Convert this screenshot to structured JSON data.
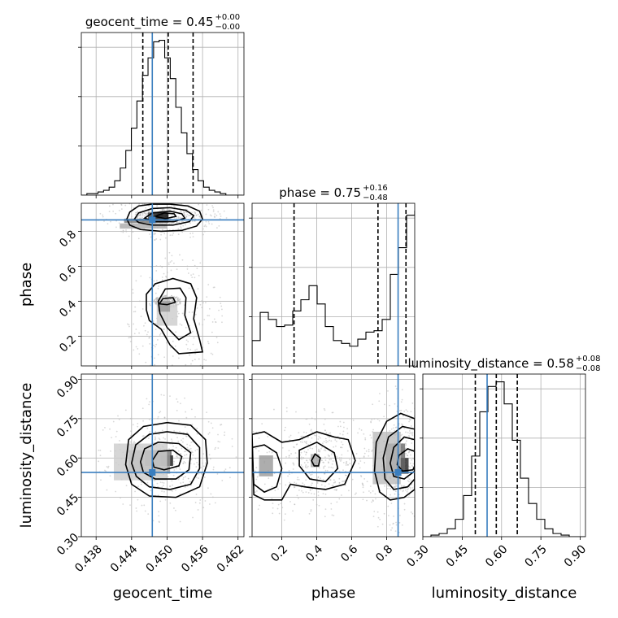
{
  "truth_color": "#3a7ebf",
  "chart_data": {
    "type": "corner",
    "parameters": [
      "geocent_time",
      "phase",
      "luminosity_distance"
    ],
    "truths": {
      "geocent_time": 0.4475,
      "phase": 0.865,
      "luminosity_distance": 0.545
    },
    "axes": {
      "geocent_time": {
        "range": [
          0.4355,
          0.463
        ],
        "ticks": [
          0.438,
          0.444,
          0.45,
          0.456,
          0.462
        ],
        "tick_labels": [
          "0.438",
          "0.444",
          "0.450",
          "0.456",
          "0.462"
        ]
      },
      "phase": {
        "range": [
          0.03,
          0.96
        ],
        "ticks": [
          0.2,
          0.4,
          0.6,
          0.8
        ],
        "tick_labels": [
          "0.2",
          "0.4",
          "0.6",
          "0.8"
        ]
      },
      "luminosity_distance": {
        "range": [
          0.3,
          0.92
        ],
        "ticks": [
          0.3,
          0.45,
          0.6,
          0.75,
          0.9
        ],
        "tick_labels": [
          "0.30",
          "0.45",
          "0.60",
          "0.75",
          "0.90"
        ]
      }
    },
    "titles": [
      {
        "param": "geocent_time",
        "label": "geocent_time = 0.45",
        "sup": "+0.00",
        "sub": "−0.00"
      },
      {
        "param": "phase",
        "label": "phase = 0.75",
        "sup": "+0.16",
        "sub": "−0.48"
      },
      {
        "param": "luminosity_distance",
        "label": "luminosity_distance = 0.58",
        "sup": "+0.08",
        "sub": "−0.08"
      }
    ],
    "diagonal": [
      {
        "param": "geocent_time",
        "bin_edges_start": 0.4355,
        "bin_width": 0.00094,
        "counts": [
          0,
          1,
          1,
          2,
          3,
          5,
          9,
          17,
          28,
          42,
          59,
          75,
          86,
          96,
          97,
          86,
          73,
          55,
          39,
          26,
          16,
          9,
          5,
          3,
          2,
          1,
          0,
          0,
          0
        ],
        "quantiles": [
          0.4459,
          0.4502,
          0.4544
        ]
      },
      {
        "param": "phase",
        "bin_edges_start": 0.03,
        "bin_width": 0.0465,
        "counts": [
          18,
          38,
          33,
          28,
          29,
          39,
          47,
          57,
          44,
          28,
          18,
          16,
          14,
          19,
          24,
          25,
          33,
          65,
          84,
          107,
          110
        ],
        "quantiles": [
          0.27,
          0.75,
          0.91
        ]
      },
      {
        "param": "luminosity_distance",
        "bin_edges_start": 0.3,
        "bin_width": 0.031,
        "counts": [
          0,
          1,
          2,
          5,
          11,
          26,
          51,
          79,
          95,
          98,
          84,
          61,
          37,
          21,
          11,
          5,
          2,
          1,
          0,
          0
        ],
        "quantiles": [
          0.5,
          0.58,
          0.66
        ]
      }
    ],
    "pairs": [
      {
        "x": "geocent_time",
        "y": "phase",
        "contours": [
          [
            [
              0.4432,
              0.87
            ],
            [
              0.4437,
              0.91
            ],
            [
              0.4452,
              0.945
            ],
            [
              0.4475,
              0.955
            ],
            [
              0.4505,
              0.955
            ],
            [
              0.4535,
              0.945
            ],
            [
              0.4555,
              0.915
            ],
            [
              0.456,
              0.87
            ],
            [
              0.455,
              0.83
            ],
            [
              0.4525,
              0.805
            ],
            [
              0.449,
              0.8
            ],
            [
              0.4455,
              0.81
            ],
            [
              0.4437,
              0.835
            ]
          ],
          [
            [
              0.4445,
              0.87
            ],
            [
              0.4452,
              0.905
            ],
            [
              0.4475,
              0.93
            ],
            [
              0.4505,
              0.935
            ],
            [
              0.4532,
              0.92
            ],
            [
              0.4545,
              0.89
            ],
            [
              0.4538,
              0.855
            ],
            [
              0.451,
              0.835
            ],
            [
              0.4475,
              0.835
            ],
            [
              0.4452,
              0.85
            ]
          ],
          [
            [
              0.4462,
              0.875
            ],
            [
              0.4475,
              0.905
            ],
            [
              0.4505,
              0.915
            ],
            [
              0.4525,
              0.9
            ],
            [
              0.453,
              0.875
            ],
            [
              0.4512,
              0.855
            ],
            [
              0.448,
              0.855
            ]
          ],
          [
            [
              0.448,
              0.885
            ],
            [
              0.4495,
              0.905
            ],
            [
              0.4512,
              0.9
            ],
            [
              0.4515,
              0.885
            ],
            [
              0.4497,
              0.872
            ]
          ],
          [
            [
              0.4465,
              0.35
            ],
            [
              0.4465,
              0.44
            ],
            [
              0.448,
              0.5
            ],
            [
              0.451,
              0.53
            ],
            [
              0.454,
              0.5
            ],
            [
              0.455,
              0.42
            ],
            [
              0.4545,
              0.3
            ],
            [
              0.4555,
              0.18
            ],
            [
              0.456,
              0.11
            ],
            [
              0.452,
              0.1
            ],
            [
              0.4505,
              0.15
            ],
            [
              0.449,
              0.24
            ],
            [
              0.447,
              0.29
            ]
          ],
          [
            [
              0.4485,
              0.4
            ],
            [
              0.4497,
              0.47
            ],
            [
              0.4522,
              0.475
            ],
            [
              0.4532,
              0.42
            ],
            [
              0.453,
              0.32
            ],
            [
              0.454,
              0.22
            ],
            [
              0.452,
              0.18
            ],
            [
              0.45,
              0.25
            ],
            [
              0.4488,
              0.33
            ]
          ],
          [
            [
              0.4487,
              0.385
            ],
            [
              0.4493,
              0.415
            ],
            [
              0.451,
              0.42
            ],
            [
              0.4514,
              0.395
            ],
            [
              0.45,
              0.38
            ]
          ]
        ],
        "density": [
          {
            "x": 0.449,
            "y": 0.885,
            "w": 0.0025,
            "h": 0.045,
            "shade": "#000000"
          },
          {
            "x": 0.4475,
            "y": 0.885,
            "w": 0.0015,
            "h": 0.045,
            "shade": "#444444"
          },
          {
            "x": 0.4465,
            "y": 0.86,
            "w": 0.0075,
            "h": 0.025,
            "shade": "#777777"
          },
          {
            "x": 0.446,
            "y": 0.83,
            "w": 0.008,
            "h": 0.03,
            "shade": "#aaaaaa"
          },
          {
            "x": 0.45,
            "y": 0.32,
            "w": 0.0035,
            "h": 0.12,
            "shade": "#cccccc"
          },
          {
            "x": 0.4495,
            "y": 0.37,
            "w": 0.002,
            "h": 0.06,
            "shade": "#999999"
          }
        ]
      },
      {
        "x": "geocent_time",
        "y": "luminosity_distance",
        "contours": [
          [
            [
              0.443,
              0.575
            ],
            [
              0.4435,
              0.67
            ],
            [
              0.446,
              0.72
            ],
            [
              0.45,
              0.735
            ],
            [
              0.454,
              0.725
            ],
            [
              0.4565,
              0.67
            ],
            [
              0.4568,
              0.58
            ],
            [
              0.4555,
              0.49
            ],
            [
              0.4515,
              0.45
            ],
            [
              0.447,
              0.455
            ],
            [
              0.444,
              0.5
            ]
          ],
          [
            [
              0.444,
              0.58
            ],
            [
              0.4447,
              0.65
            ],
            [
              0.447,
              0.69
            ],
            [
              0.45,
              0.7
            ],
            [
              0.4535,
              0.69
            ],
            [
              0.4555,
              0.64
            ],
            [
              0.4555,
              0.56
            ],
            [
              0.454,
              0.5
            ],
            [
              0.4505,
              0.48
            ],
            [
              0.447,
              0.49
            ],
            [
              0.4448,
              0.53
            ]
          ],
          [
            [
              0.4455,
              0.585
            ],
            [
              0.4462,
              0.635
            ],
            [
              0.4485,
              0.66
            ],
            [
              0.452,
              0.655
            ],
            [
              0.454,
              0.62
            ],
            [
              0.4537,
              0.555
            ],
            [
              0.4515,
              0.52
            ],
            [
              0.448,
              0.52
            ],
            [
              0.446,
              0.545
            ]
          ],
          [
            [
              0.4475,
              0.59
            ],
            [
              0.4485,
              0.625
            ],
            [
              0.451,
              0.63
            ],
            [
              0.4525,
              0.605
            ],
            [
              0.452,
              0.57
            ],
            [
              0.4495,
              0.555
            ],
            [
              0.4478,
              0.565
            ]
          ]
        ],
        "density": [
          {
            "x": 0.45,
            "y": 0.59,
            "w": 0.002,
            "h": 0.04,
            "shade": "#000000"
          },
          {
            "x": 0.4485,
            "y": 0.6,
            "w": 0.0045,
            "h": 0.06,
            "shade": "#555555"
          },
          {
            "x": 0.447,
            "y": 0.585,
            "w": 0.007,
            "h": 0.09,
            "shade": "#999999"
          },
          {
            "x": 0.4455,
            "y": 0.585,
            "w": 0.009,
            "h": 0.14,
            "shade": "#cccccc"
          }
        ]
      },
      {
        "x": "phase",
        "y": "luminosity_distance",
        "contours": [
          [
            [
              0.03,
              0.69
            ],
            [
              0.1,
              0.7
            ],
            [
              0.2,
              0.66
            ],
            [
              0.3,
              0.67
            ],
            [
              0.4,
              0.7
            ],
            [
              0.5,
              0.68
            ],
            [
              0.58,
              0.67
            ],
            [
              0.62,
              0.59
            ],
            [
              0.56,
              0.5
            ],
            [
              0.45,
              0.48
            ],
            [
              0.33,
              0.49
            ],
            [
              0.25,
              0.5
            ],
            [
              0.2,
              0.44
            ],
            [
              0.1,
              0.44
            ],
            [
              0.04,
              0.46
            ]
          ],
          [
            [
              0.03,
              0.64
            ],
            [
              0.1,
              0.65
            ],
            [
              0.17,
              0.62
            ],
            [
              0.2,
              0.56
            ],
            [
              0.17,
              0.49
            ],
            [
              0.1,
              0.47
            ],
            [
              0.04,
              0.5
            ]
          ],
          [
            [
              0.3,
              0.63
            ],
            [
              0.4,
              0.66
            ],
            [
              0.5,
              0.62
            ],
            [
              0.52,
              0.56
            ],
            [
              0.45,
              0.51
            ],
            [
              0.36,
              0.52
            ],
            [
              0.3,
              0.57
            ]
          ],
          [
            [
              0.37,
              0.59
            ],
            [
              0.39,
              0.615
            ],
            [
              0.42,
              0.6
            ],
            [
              0.41,
              0.57
            ],
            [
              0.385,
              0.57
            ]
          ],
          [
            [
              0.96,
              0.75
            ],
            [
              0.88,
              0.77
            ],
            [
              0.8,
              0.74
            ],
            [
              0.74,
              0.66
            ],
            [
              0.73,
              0.55
            ],
            [
              0.76,
              0.47
            ],
            [
              0.82,
              0.44
            ],
            [
              0.9,
              0.45
            ],
            [
              0.96,
              0.48
            ]
          ],
          [
            [
              0.96,
              0.71
            ],
            [
              0.89,
              0.72
            ],
            [
              0.81,
              0.68
            ],
            [
              0.78,
              0.6
            ],
            [
              0.79,
              0.52
            ],
            [
              0.84,
              0.48
            ],
            [
              0.92,
              0.49
            ],
            [
              0.96,
              0.52
            ]
          ],
          [
            [
              0.96,
              0.67
            ],
            [
              0.9,
              0.68
            ],
            [
              0.84,
              0.64
            ],
            [
              0.82,
              0.58
            ],
            [
              0.84,
              0.53
            ],
            [
              0.9,
              0.52
            ],
            [
              0.96,
              0.55
            ]
          ],
          [
            [
              0.96,
              0.625
            ],
            [
              0.92,
              0.635
            ],
            [
              0.87,
              0.61
            ],
            [
              0.86,
              0.575
            ],
            [
              0.89,
              0.55
            ],
            [
              0.95,
              0.555
            ],
            [
              0.96,
              0.57
            ]
          ]
        ],
        "density": [
          {
            "x": 0.89,
            "y": 0.57,
            "w": 0.07,
            "h": 0.06,
            "shade": "#222222"
          },
          {
            "x": 0.85,
            "y": 0.6,
            "w": 0.11,
            "h": 0.11,
            "shade": "#666666"
          },
          {
            "x": 0.8,
            "y": 0.6,
            "w": 0.16,
            "h": 0.2,
            "shade": "#bbbbbb"
          },
          {
            "x": 0.11,
            "y": 0.57,
            "w": 0.08,
            "h": 0.08,
            "shade": "#999999"
          },
          {
            "x": 0.39,
            "y": 0.59,
            "w": 0.05,
            "h": 0.05,
            "shade": "#aaaaaa"
          }
        ]
      }
    ]
  }
}
